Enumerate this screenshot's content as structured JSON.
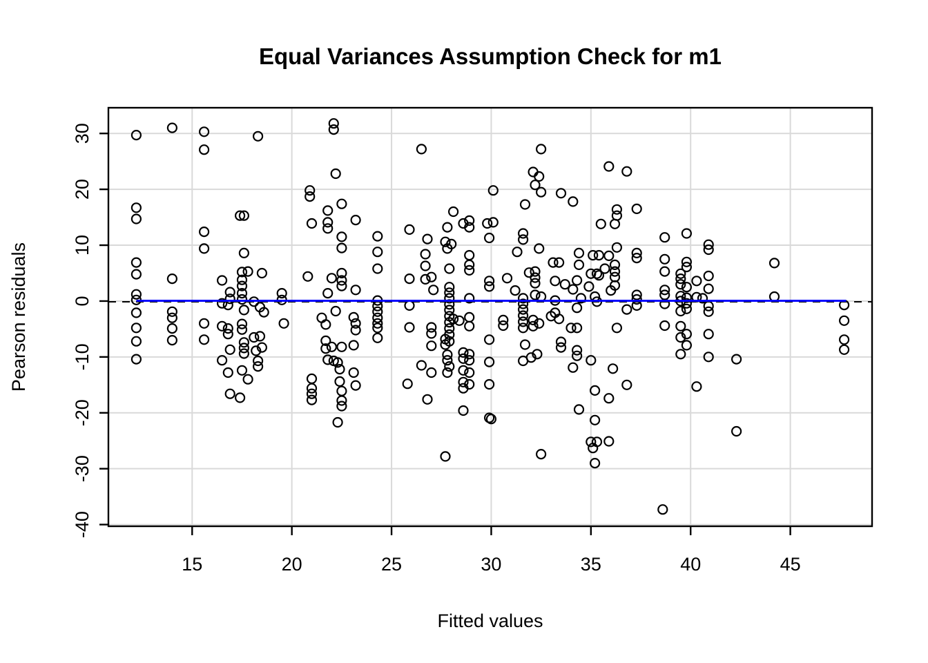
{
  "figure": {
    "background_color": "#ffffff",
    "foreground_color": "#000000"
  },
  "chart_data": {
    "type": "scatter",
    "title": "Equal Variances Assumption Check for m1",
    "xlabel": "Fitted values",
    "ylabel": "Pearson residuals",
    "xlim": [
      10.8,
      49.1
    ],
    "ylim": [
      -40.3,
      34.6
    ],
    "x_ticks": [
      15,
      20,
      25,
      30,
      35,
      40,
      45
    ],
    "y_ticks": [
      -40,
      -30,
      -20,
      -10,
      0,
      10,
      20,
      30
    ],
    "grid": true,
    "grid_color": "#d9d9d9",
    "legend": "none",
    "point_style": {
      "shape": "open-circle",
      "radius": 6.5,
      "stroke": "#000000",
      "stroke_width": 2.2,
      "fill": "none"
    },
    "reference_lines": [
      {
        "id": "zero-dashed-line",
        "y": 0,
        "x_start": 10.8,
        "x_end": 49.1,
        "style": "dashed",
        "color": "#000000",
        "width": 2
      },
      {
        "id": "smooth-blue-line",
        "y": 0,
        "x_start": 12.2,
        "x_end": 47.8,
        "style": "solid",
        "color": "#0000ff",
        "width": 3
      }
    ],
    "points": [
      [
        12.2,
        29.7
      ],
      [
        12.2,
        16.7
      ],
      [
        12.2,
        14.7
      ],
      [
        12.2,
        6.9
      ],
      [
        12.2,
        4.8
      ],
      [
        12.2,
        1.2
      ],
      [
        12.2,
        0.2
      ],
      [
        12.2,
        -2.1
      ],
      [
        12.2,
        -4.8
      ],
      [
        12.2,
        -7.2
      ],
      [
        12.2,
        -10.4
      ],
      [
        14.0,
        31.0
      ],
      [
        14.0,
        4.0
      ],
      [
        14.0,
        -1.9
      ],
      [
        14.0,
        -3.0
      ],
      [
        14.0,
        -4.9
      ],
      [
        14.0,
        -7.0
      ],
      [
        15.6,
        30.3
      ],
      [
        15.6,
        27.1
      ],
      [
        15.6,
        12.4
      ],
      [
        15.6,
        9.4
      ],
      [
        15.6,
        -4.0
      ],
      [
        15.6,
        -6.9
      ],
      [
        16.5,
        3.7
      ],
      [
        16.5,
        -0.4
      ],
      [
        16.5,
        -4.5
      ],
      [
        16.5,
        -10.6
      ],
      [
        16.8,
        -0.7
      ],
      [
        16.8,
        -4.9
      ],
      [
        16.8,
        -5.9
      ],
      [
        16.8,
        -12.8
      ],
      [
        16.9,
        1.6
      ],
      [
        16.9,
        0.4
      ],
      [
        16.9,
        -8.7
      ],
      [
        16.9,
        -16.6
      ],
      [
        17.4,
        15.3
      ],
      [
        17.4,
        -17.3
      ],
      [
        17.5,
        5.2
      ],
      [
        17.5,
        3.8
      ],
      [
        17.5,
        2.7
      ],
      [
        17.5,
        1.4
      ],
      [
        17.5,
        0.3
      ],
      [
        17.5,
        -4.1
      ],
      [
        17.5,
        -5.1
      ],
      [
        17.5,
        -12.4
      ],
      [
        17.6,
        15.3
      ],
      [
        17.6,
        8.6
      ],
      [
        17.6,
        -1.6
      ],
      [
        17.6,
        -7.4
      ],
      [
        17.6,
        -8.4
      ],
      [
        17.6,
        -9.4
      ],
      [
        17.8,
        5.3
      ],
      [
        17.8,
        -14.0
      ],
      [
        18.1,
        -0.1
      ],
      [
        18.1,
        -6.5
      ],
      [
        18.2,
        -8.9
      ],
      [
        18.3,
        29.5
      ],
      [
        18.3,
        -10.7
      ],
      [
        18.3,
        -11.7
      ],
      [
        18.4,
        -1.1
      ],
      [
        18.4,
        -6.3
      ],
      [
        18.5,
        5.0
      ],
      [
        18.5,
        -8.3
      ],
      [
        18.6,
        -2.0
      ],
      [
        19.5,
        1.4
      ],
      [
        19.5,
        0.2
      ],
      [
        19.6,
        -4.0
      ],
      [
        20.8,
        4.4
      ],
      [
        20.9,
        19.8
      ],
      [
        20.9,
        18.7
      ],
      [
        21.0,
        13.9
      ],
      [
        21.0,
        -13.9
      ],
      [
        21.0,
        -15.6
      ],
      [
        21.0,
        -16.6
      ],
      [
        21.0,
        -17.7
      ],
      [
        21.5,
        -3.0
      ],
      [
        21.7,
        -4.2
      ],
      [
        21.7,
        -7.1
      ],
      [
        21.7,
        -8.5
      ],
      [
        21.8,
        16.2
      ],
      [
        21.8,
        14.1
      ],
      [
        21.8,
        13.0
      ],
      [
        21.8,
        1.4
      ],
      [
        21.8,
        -10.5
      ],
      [
        22.0,
        4.1
      ],
      [
        22.0,
        -8.2
      ],
      [
        22.1,
        31.8
      ],
      [
        22.1,
        30.7
      ],
      [
        22.1,
        -10.7
      ],
      [
        22.2,
        22.8
      ],
      [
        22.2,
        -1.8
      ],
      [
        22.3,
        -11.0
      ],
      [
        22.3,
        -21.7
      ],
      [
        22.4,
        -12.2
      ],
      [
        22.4,
        -14.4
      ],
      [
        22.5,
        17.4
      ],
      [
        22.5,
        11.5
      ],
      [
        22.5,
        9.5
      ],
      [
        22.5,
        5.0
      ],
      [
        22.5,
        3.7
      ],
      [
        22.5,
        2.7
      ],
      [
        22.5,
        -8.2
      ],
      [
        22.5,
        -16.1
      ],
      [
        22.5,
        -17.8
      ],
      [
        22.5,
        -18.8
      ],
      [
        23.1,
        -2.9
      ],
      [
        23.1,
        -7.9
      ],
      [
        23.1,
        -12.8
      ],
      [
        23.2,
        14.5
      ],
      [
        23.2,
        2.0
      ],
      [
        23.2,
        -4.0
      ],
      [
        23.2,
        -5.2
      ],
      [
        23.2,
        -15.1
      ],
      [
        24.3,
        11.6
      ],
      [
        24.3,
        8.8
      ],
      [
        24.3,
        5.8
      ],
      [
        24.3,
        0.1
      ],
      [
        24.3,
        -0.9
      ],
      [
        24.3,
        -1.9
      ],
      [
        24.3,
        -3.0
      ],
      [
        24.3,
        -4.0
      ],
      [
        24.3,
        -4.8
      ],
      [
        24.3,
        -6.6
      ],
      [
        25.8,
        -14.8
      ],
      [
        25.9,
        12.8
      ],
      [
        25.9,
        4.0
      ],
      [
        25.9,
        -0.8
      ],
      [
        25.9,
        -4.7
      ],
      [
        26.5,
        27.2
      ],
      [
        26.5,
        -11.5
      ],
      [
        26.7,
        8.4
      ],
      [
        26.7,
        6.3
      ],
      [
        26.7,
        3.9
      ],
      [
        26.8,
        11.1
      ],
      [
        26.8,
        -17.6
      ],
      [
        27.0,
        4.3
      ],
      [
        27.0,
        -4.7
      ],
      [
        27.0,
        -5.8
      ],
      [
        27.0,
        -8.0
      ],
      [
        27.0,
        -12.8
      ],
      [
        27.1,
        2.0
      ],
      [
        27.7,
        10.6
      ],
      [
        27.7,
        -6.8
      ],
      [
        27.7,
        -7.8
      ],
      [
        27.7,
        -27.8
      ],
      [
        27.8,
        13.2
      ],
      [
        27.8,
        9.4
      ],
      [
        27.8,
        -9.6
      ],
      [
        27.8,
        -10.6
      ],
      [
        27.8,
        -12.8
      ],
      [
        27.9,
        5.8
      ],
      [
        27.9,
        2.5
      ],
      [
        27.9,
        1.5
      ],
      [
        27.9,
        0.5
      ],
      [
        27.9,
        -0.6
      ],
      [
        27.9,
        -1.6
      ],
      [
        27.9,
        -2.7
      ],
      [
        27.9,
        -3.8
      ],
      [
        27.9,
        -4.9
      ],
      [
        27.9,
        -6.0
      ],
      [
        27.9,
        -7.2
      ],
      [
        27.9,
        -11.7
      ],
      [
        28.0,
        10.2
      ],
      [
        28.1,
        16.0
      ],
      [
        28.1,
        -3.2
      ],
      [
        28.4,
        -3.5
      ],
      [
        28.6,
        13.9
      ],
      [
        28.6,
        -9.2
      ],
      [
        28.6,
        -10.3
      ],
      [
        28.6,
        -12.4
      ],
      [
        28.6,
        -14.5
      ],
      [
        28.6,
        -15.6
      ],
      [
        28.6,
        -19.6
      ],
      [
        28.9,
        14.4
      ],
      [
        28.9,
        13.2
      ],
      [
        28.9,
        8.2
      ],
      [
        28.9,
        6.5
      ],
      [
        28.9,
        5.5
      ],
      [
        28.9,
        0.5
      ],
      [
        28.9,
        -2.9
      ],
      [
        28.9,
        -4.5
      ],
      [
        28.9,
        -9.5
      ],
      [
        28.9,
        -10.6
      ],
      [
        28.9,
        -12.8
      ],
      [
        28.9,
        -14.9
      ],
      [
        29.8,
        13.9
      ],
      [
        30.1,
        14.1
      ],
      [
        29.9,
        11.3
      ],
      [
        29.9,
        3.6
      ],
      [
        29.9,
        2.6
      ],
      [
        29.9,
        -6.9
      ],
      [
        29.9,
        -10.9
      ],
      [
        29.9,
        -14.9
      ],
      [
        29.9,
        -20.9
      ],
      [
        30.0,
        -21.1
      ],
      [
        30.1,
        19.8
      ],
      [
        30.6,
        -3.4
      ],
      [
        30.6,
        -4.4
      ],
      [
        30.8,
        4.1
      ],
      [
        31.2,
        1.9
      ],
      [
        31.3,
        8.8
      ],
      [
        31.6,
        12.1
      ],
      [
        31.6,
        11.0
      ],
      [
        31.6,
        0.5
      ],
      [
        31.6,
        -0.5
      ],
      [
        31.6,
        -1.5
      ],
      [
        31.6,
        -2.6
      ],
      [
        31.6,
        -3.7
      ],
      [
        31.6,
        -4.8
      ],
      [
        31.6,
        -10.7
      ],
      [
        31.7,
        17.3
      ],
      [
        31.7,
        -7.8
      ],
      [
        31.9,
        5.1
      ],
      [
        32.0,
        -10.1
      ],
      [
        32.1,
        23.1
      ],
      [
        32.1,
        -3.4
      ],
      [
        32.1,
        -4.5
      ],
      [
        32.2,
        20.8
      ],
      [
        32.2,
        5.3
      ],
      [
        32.2,
        4.2
      ],
      [
        32.2,
        3.2
      ],
      [
        32.2,
        1.1
      ],
      [
        32.3,
        -9.5
      ],
      [
        32.4,
        22.3
      ],
      [
        32.4,
        9.4
      ],
      [
        32.4,
        -4.0
      ],
      [
        32.5,
        27.2
      ],
      [
        32.5,
        19.5
      ],
      [
        32.5,
        0.8
      ],
      [
        32.5,
        -27.4
      ],
      [
        33.0,
        -2.7
      ],
      [
        33.1,
        6.9
      ],
      [
        33.2,
        3.6
      ],
      [
        33.2,
        0.1
      ],
      [
        33.2,
        -2.1
      ],
      [
        33.4,
        6.9
      ],
      [
        33.4,
        -3.2
      ],
      [
        33.5,
        19.3
      ],
      [
        33.5,
        -7.3
      ],
      [
        33.5,
        -8.3
      ],
      [
        33.7,
        3.0
      ],
      [
        34.0,
        -4.8
      ],
      [
        34.1,
        17.8
      ],
      [
        34.1,
        2.1
      ],
      [
        34.1,
        -11.9
      ],
      [
        34.3,
        3.7
      ],
      [
        34.3,
        -1.2
      ],
      [
        34.3,
        -4.8
      ],
      [
        34.3,
        -8.8
      ],
      [
        34.3,
        -9.8
      ],
      [
        34.4,
        8.6
      ],
      [
        34.4,
        6.5
      ],
      [
        34.4,
        -19.4
      ],
      [
        34.5,
        0.5
      ],
      [
        34.9,
        2.6
      ],
      [
        35.0,
        4.9
      ],
      [
        35.0,
        -10.6
      ],
      [
        35.0,
        -25.2
      ],
      [
        35.1,
        8.2
      ],
      [
        35.1,
        -26.3
      ],
      [
        35.2,
        0.8
      ],
      [
        35.2,
        -16.0
      ],
      [
        35.2,
        -21.3
      ],
      [
        35.2,
        -29.0
      ],
      [
        35.3,
        4.9
      ],
      [
        35.3,
        -0.1
      ],
      [
        35.3,
        -25.2
      ],
      [
        35.4,
        8.2
      ],
      [
        35.4,
        4.6
      ],
      [
        35.5,
        13.8
      ],
      [
        35.7,
        5.8
      ],
      [
        35.9,
        24.1
      ],
      [
        35.9,
        8.1
      ],
      [
        35.9,
        -17.4
      ],
      [
        35.9,
        -25.1
      ],
      [
        36.0,
        1.9
      ],
      [
        36.1,
        -12.1
      ],
      [
        36.2,
        13.8
      ],
      [
        36.2,
        6.5
      ],
      [
        36.2,
        5.3
      ],
      [
        36.2,
        4.3
      ],
      [
        36.2,
        2.8
      ],
      [
        36.3,
        16.4
      ],
      [
        36.3,
        15.3
      ],
      [
        36.3,
        9.6
      ],
      [
        36.3,
        -4.8
      ],
      [
        36.8,
        23.2
      ],
      [
        36.8,
        -1.5
      ],
      [
        36.8,
        -15.0
      ],
      [
        37.3,
        16.5
      ],
      [
        37.3,
        8.6
      ],
      [
        37.3,
        7.7
      ],
      [
        37.3,
        1.1
      ],
      [
        37.3,
        0.3
      ],
      [
        37.3,
        -0.8
      ],
      [
        38.6,
        -37.3
      ],
      [
        38.7,
        11.4
      ],
      [
        38.7,
        7.5
      ],
      [
        38.7,
        5.3
      ],
      [
        38.7,
        2.0
      ],
      [
        38.7,
        1.1
      ],
      [
        38.7,
        -0.5
      ],
      [
        38.7,
        -4.4
      ],
      [
        39.5,
        4.9
      ],
      [
        39.5,
        4.0
      ],
      [
        39.5,
        3.0
      ],
      [
        39.5,
        0.9
      ],
      [
        39.5,
        0.0
      ],
      [
        39.5,
        -1.8
      ],
      [
        39.5,
        -4.5
      ],
      [
        39.5,
        -6.5
      ],
      [
        39.5,
        -9.5
      ],
      [
        39.8,
        12.1
      ],
      [
        39.8,
        7.0
      ],
      [
        39.8,
        6.1
      ],
      [
        39.8,
        2.5
      ],
      [
        39.8,
        0.6
      ],
      [
        39.8,
        -0.4
      ],
      [
        39.8,
        -1.4
      ],
      [
        39.8,
        -5.9
      ],
      [
        39.8,
        -7.9
      ],
      [
        40.3,
        3.6
      ],
      [
        40.3,
        0.7
      ],
      [
        40.3,
        -15.3
      ],
      [
        40.6,
        0.5
      ],
      [
        40.9,
        10.1
      ],
      [
        40.9,
        9.2
      ],
      [
        40.9,
        4.5
      ],
      [
        40.9,
        2.2
      ],
      [
        40.9,
        -0.9
      ],
      [
        40.9,
        -1.9
      ],
      [
        40.9,
        -5.9
      ],
      [
        40.9,
        -10.0
      ],
      [
        42.3,
        -10.4
      ],
      [
        42.3,
        -23.3
      ],
      [
        44.2,
        6.8
      ],
      [
        44.2,
        0.8
      ],
      [
        47.7,
        -0.7
      ],
      [
        47.7,
        -3.5
      ],
      [
        47.7,
        -6.9
      ],
      [
        47.7,
        -8.7
      ]
    ]
  }
}
